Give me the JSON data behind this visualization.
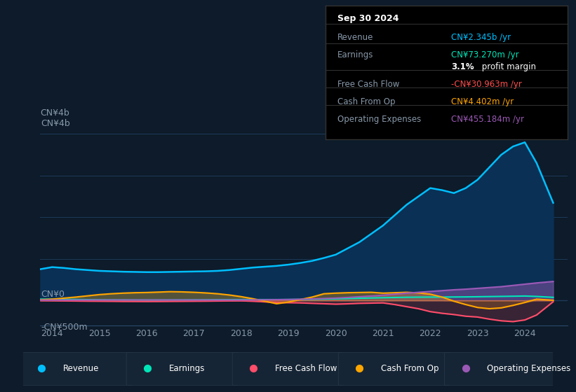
{
  "bg_color": "#0d1b2a",
  "plot_bg_color": "#0d1b2a",
  "grid_color": "#1e3a5a",
  "ylabel_text": "CN¥4b",
  "ylabel_neg": "-CN¥500m",
  "ylabel_zero": "CN¥0",
  "ylim": [
    -600,
    4300
  ],
  "years_float": [
    2013.75,
    2014.0,
    2014.25,
    2014.5,
    2014.75,
    2015.0,
    2015.25,
    2015.5,
    2015.75,
    2016.0,
    2016.25,
    2016.5,
    2016.75,
    2017.0,
    2017.25,
    2017.5,
    2017.75,
    2018.0,
    2018.25,
    2018.5,
    2018.75,
    2019.0,
    2019.25,
    2019.5,
    2019.75,
    2020.0,
    2020.25,
    2020.5,
    2020.75,
    2021.0,
    2021.25,
    2021.5,
    2021.75,
    2022.0,
    2022.25,
    2022.5,
    2022.75,
    2023.0,
    2023.25,
    2023.5,
    2023.75,
    2024.0,
    2024.25,
    2024.6
  ],
  "revenue": [
    750,
    800,
    780,
    750,
    730,
    710,
    700,
    690,
    685,
    680,
    680,
    685,
    690,
    695,
    700,
    710,
    730,
    760,
    790,
    810,
    830,
    860,
    900,
    950,
    1020,
    1100,
    1250,
    1400,
    1600,
    1800,
    2050,
    2300,
    2500,
    2700,
    2650,
    2580,
    2700,
    2900,
    3200,
    3500,
    3700,
    3800,
    3300,
    2345
  ],
  "earnings": [
    30,
    28,
    25,
    22,
    18,
    15,
    13,
    12,
    11,
    10,
    10,
    11,
    12,
    14,
    15,
    17,
    18,
    20,
    20,
    20,
    20,
    22,
    25,
    28,
    32,
    38,
    45,
    52,
    58,
    65,
    70,
    75,
    78,
    80,
    80,
    82,
    84,
    88,
    92,
    96,
    100,
    105,
    95,
    73
  ],
  "free_cash_flow": [
    -5,
    -8,
    -12,
    -15,
    -18,
    -20,
    -22,
    -25,
    -26,
    -27,
    -26,
    -24,
    -22,
    -20,
    -18,
    -15,
    -12,
    -10,
    -20,
    -35,
    -50,
    -55,
    -60,
    -70,
    -80,
    -90,
    -82,
    -70,
    -65,
    -60,
    -100,
    -150,
    -200,
    -270,
    -310,
    -340,
    -380,
    -400,
    -450,
    -490,
    -510,
    -470,
    -350,
    -31
  ],
  "cash_from_op": [
    15,
    30,
    55,
    80,
    110,
    140,
    160,
    175,
    185,
    190,
    200,
    210,
    205,
    195,
    180,
    160,
    130,
    90,
    40,
    -20,
    -80,
    -40,
    20,
    80,
    160,
    175,
    185,
    190,
    195,
    175,
    185,
    195,
    180,
    150,
    80,
    -20,
    -100,
    -170,
    -200,
    -180,
    -120,
    -50,
    30,
    4
  ],
  "operating_expenses": [
    8,
    8,
    9,
    9,
    9,
    10,
    10,
    10,
    10,
    10,
    10,
    10,
    10,
    10,
    10,
    10,
    10,
    10,
    12,
    15,
    18,
    22,
    28,
    35,
    45,
    55,
    70,
    88,
    105,
    125,
    150,
    175,
    195,
    215,
    235,
    255,
    270,
    290,
    310,
    330,
    360,
    390,
    420,
    455
  ],
  "revenue_color": "#00bfff",
  "earnings_color": "#00e6b8",
  "free_cash_flow_color": "#ff4d6a",
  "cash_from_op_color": "#ffa500",
  "operating_expenses_color": "#9b59b6",
  "revenue_fill_color": "#0a3055",
  "legend_items": [
    {
      "label": "Revenue",
      "color": "#00bfff"
    },
    {
      "label": "Earnings",
      "color": "#00e6b8"
    },
    {
      "label": "Free Cash Flow",
      "color": "#ff4d6a"
    },
    {
      "label": "Cash From Op",
      "color": "#ffa500"
    },
    {
      "label": "Operating Expenses",
      "color": "#9b59b6"
    }
  ],
  "info_box": {
    "date": "Sep 30 2024",
    "rows": [
      {
        "label": "Revenue",
        "value": "CN¥2.345b /yr",
        "value_color": "#00bfff"
      },
      {
        "label": "Earnings",
        "value": "CN¥73.270m /yr",
        "value_color": "#00e6b8"
      },
      {
        "label": "",
        "value": "3.1% profit margin",
        "value_color": "#ffffff"
      },
      {
        "label": "Free Cash Flow",
        "value": "-CN¥30.963m /yr",
        "value_color": "#ff4d4d"
      },
      {
        "label": "Cash From Op",
        "value": "CN¥4.402m /yr",
        "value_color": "#ffa500"
      },
      {
        "label": "Operating Expenses",
        "value": "CN¥455.184m /yr",
        "value_color": "#9b59b6"
      }
    ]
  }
}
